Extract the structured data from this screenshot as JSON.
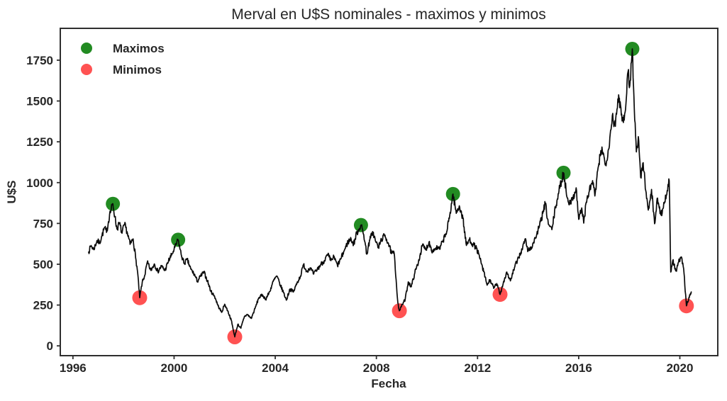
{
  "figure": {
    "background": "#ffffff",
    "text_color": "#262626",
    "spine_color": "#2e2e2e"
  },
  "chart_data": {
    "type": "line",
    "title": "Merval en U$S nominales - maximos y minimos",
    "xlabel": "Fecha",
    "ylabel": "U$S",
    "xlim": [
      1995.5,
      2021.5
    ],
    "ylim": [
      -60,
      1945
    ],
    "xticks": [
      1996,
      2000,
      2004,
      2008,
      2012,
      2016,
      2020
    ],
    "yticks": [
      0,
      250,
      500,
      750,
      1000,
      1250,
      1500,
      1750
    ],
    "grid": false,
    "line_color": "#0a0a0a",
    "line_width": 1.7,
    "legend": {
      "position": "upper-left",
      "entries": [
        {
          "label": "Maximos",
          "color": "#228B22"
        },
        {
          "label": "Minimos",
          "color": "#FF5252"
        }
      ]
    },
    "series": {
      "name": "Merval U$S",
      "points": [
        [
          1996.62,
          575
        ],
        [
          1996.72,
          615
        ],
        [
          1996.82,
          590
        ],
        [
          1996.95,
          645
        ],
        [
          1997.05,
          630
        ],
        [
          1997.15,
          675
        ],
        [
          1997.25,
          725
        ],
        [
          1997.33,
          695
        ],
        [
          1997.45,
          805
        ],
        [
          1997.58,
          870
        ],
        [
          1997.66,
          790
        ],
        [
          1997.74,
          715
        ],
        [
          1997.84,
          752
        ],
        [
          1997.94,
          690
        ],
        [
          1998.04,
          745
        ],
        [
          1998.14,
          700
        ],
        [
          1998.26,
          622
        ],
        [
          1998.38,
          655
        ],
        [
          1998.48,
          540
        ],
        [
          1998.56,
          448
        ],
        [
          1998.64,
          295
        ],
        [
          1998.74,
          388
        ],
        [
          1998.84,
          432
        ],
        [
          1998.94,
          512
        ],
        [
          1999.08,
          462
        ],
        [
          1999.22,
          502
        ],
        [
          1999.36,
          455
        ],
        [
          1999.5,
          488
        ],
        [
          1999.64,
          462
        ],
        [
          1999.78,
          520
        ],
        [
          1999.9,
          556
        ],
        [
          2000.0,
          590
        ],
        [
          2000.16,
          650
        ],
        [
          2000.28,
          560
        ],
        [
          2000.4,
          505
        ],
        [
          2000.52,
          528
        ],
        [
          2000.66,
          470
        ],
        [
          2000.8,
          438
        ],
        [
          2000.92,
          396
        ],
        [
          2001.04,
          425
        ],
        [
          2001.18,
          452
        ],
        [
          2001.32,
          398
        ],
        [
          2001.46,
          332
        ],
        [
          2001.6,
          305
        ],
        [
          2001.74,
          245
        ],
        [
          2001.88,
          205
        ],
        [
          2002.0,
          255
        ],
        [
          2002.12,
          215
        ],
        [
          2002.26,
          158
        ],
        [
          2002.4,
          55
        ],
        [
          2002.52,
          132
        ],
        [
          2002.64,
          108
        ],
        [
          2002.78,
          180
        ],
        [
          2002.9,
          192
        ],
        [
          2003.05,
          168
        ],
        [
          2003.2,
          228
        ],
        [
          2003.35,
          295
        ],
        [
          2003.5,
          312
        ],
        [
          2003.62,
          285
        ],
        [
          2003.78,
          332
        ],
        [
          2003.92,
          395
        ],
        [
          2004.06,
          428
        ],
        [
          2004.2,
          372
        ],
        [
          2004.32,
          330
        ],
        [
          2004.44,
          280
        ],
        [
          2004.58,
          348
        ],
        [
          2004.72,
          330
        ],
        [
          2004.86,
          385
        ],
        [
          2005.0,
          428
        ],
        [
          2005.12,
          498
        ],
        [
          2005.24,
          458
        ],
        [
          2005.38,
          478
        ],
        [
          2005.52,
          440
        ],
        [
          2005.66,
          468
        ],
        [
          2005.8,
          498
        ],
        [
          2005.94,
          522
        ],
        [
          2006.08,
          558
        ],
        [
          2006.2,
          522
        ],
        [
          2006.32,
          545
        ],
        [
          2006.46,
          492
        ],
        [
          2006.6,
          535
        ],
        [
          2006.74,
          588
        ],
        [
          2006.88,
          638
        ],
        [
          2007.0,
          655
        ],
        [
          2007.1,
          622
        ],
        [
          2007.22,
          690
        ],
        [
          2007.39,
          740
        ],
        [
          2007.5,
          682
        ],
        [
          2007.62,
          562
        ],
        [
          2007.74,
          648
        ],
        [
          2007.85,
          700
        ],
        [
          2007.96,
          645
        ],
        [
          2008.08,
          602
        ],
        [
          2008.2,
          652
        ],
        [
          2008.34,
          678
        ],
        [
          2008.48,
          625
        ],
        [
          2008.6,
          565
        ],
        [
          2008.7,
          572
        ],
        [
          2008.78,
          405
        ],
        [
          2008.85,
          262
        ],
        [
          2008.91,
          215
        ],
        [
          2009.02,
          252
        ],
        [
          2009.14,
          285
        ],
        [
          2009.26,
          392
        ],
        [
          2009.38,
          362
        ],
        [
          2009.52,
          448
        ],
        [
          2009.66,
          512
        ],
        [
          2009.82,
          618
        ],
        [
          2009.95,
          588
        ],
        [
          2010.08,
          635
        ],
        [
          2010.22,
          578
        ],
        [
          2010.36,
          602
        ],
        [
          2010.5,
          592
        ],
        [
          2010.64,
          648
        ],
        [
          2010.78,
          698
        ],
        [
          2010.9,
          798
        ],
        [
          2011.03,
          930
        ],
        [
          2011.16,
          812
        ],
        [
          2011.28,
          858
        ],
        [
          2011.42,
          782
        ],
        [
          2011.56,
          615
        ],
        [
          2011.68,
          652
        ],
        [
          2011.82,
          622
        ],
        [
          2011.96,
          598
        ],
        [
          2012.1,
          532
        ],
        [
          2012.24,
          455
        ],
        [
          2012.38,
          372
        ],
        [
          2012.5,
          405
        ],
        [
          2012.64,
          352
        ],
        [
          2012.76,
          382
        ],
        [
          2012.89,
          315
        ],
        [
          2013.02,
          388
        ],
        [
          2013.16,
          452
        ],
        [
          2013.3,
          398
        ],
        [
          2013.46,
          478
        ],
        [
          2013.62,
          542
        ],
        [
          2013.76,
          588
        ],
        [
          2013.88,
          655
        ],
        [
          2014.0,
          582
        ],
        [
          2014.14,
          605
        ],
        [
          2014.28,
          658
        ],
        [
          2014.44,
          728
        ],
        [
          2014.58,
          812
        ],
        [
          2014.68,
          872
        ],
        [
          2014.8,
          745
        ],
        [
          2014.94,
          712
        ],
        [
          2015.08,
          845
        ],
        [
          2015.22,
          948
        ],
        [
          2015.4,
          1060
        ],
        [
          2015.55,
          905
        ],
        [
          2015.68,
          870
        ],
        [
          2015.78,
          912
        ],
        [
          2015.9,
          968
        ],
        [
          2016.0,
          775
        ],
        [
          2016.12,
          845
        ],
        [
          2016.2,
          752
        ],
        [
          2016.3,
          880
        ],
        [
          2016.42,
          948
        ],
        [
          2016.55,
          1012
        ],
        [
          2016.64,
          918
        ],
        [
          2016.8,
          1118
        ],
        [
          2016.92,
          1218
        ],
        [
          2017.05,
          1108
        ],
        [
          2017.18,
          1205
        ],
        [
          2017.33,
          1410
        ],
        [
          2017.45,
          1345
        ],
        [
          2017.58,
          1538
        ],
        [
          2017.7,
          1420
        ],
        [
          2017.8,
          1382
        ],
        [
          2017.95,
          1678
        ],
        [
          2018.02,
          1592
        ],
        [
          2018.12,
          1819
        ],
        [
          2018.2,
          1452
        ],
        [
          2018.28,
          1188
        ],
        [
          2018.36,
          1282
        ],
        [
          2018.45,
          1032
        ],
        [
          2018.55,
          1122
        ],
        [
          2018.65,
          952
        ],
        [
          2018.75,
          832
        ],
        [
          2018.88,
          958
        ],
        [
          2019.0,
          748
        ],
        [
          2019.12,
          905
        ],
        [
          2019.25,
          802
        ],
        [
          2019.4,
          882
        ],
        [
          2019.5,
          952
        ],
        [
          2019.58,
          1012
        ],
        [
          2019.64,
          452
        ],
        [
          2019.72,
          522
        ],
        [
          2019.85,
          458
        ],
        [
          2019.95,
          512
        ],
        [
          2020.05,
          545
        ],
        [
          2020.15,
          472
        ],
        [
          2020.26,
          245
        ],
        [
          2020.36,
          298
        ],
        [
          2020.45,
          330
        ]
      ]
    },
    "maxima": {
      "label": "Maximos",
      "color": "#228B22",
      "points": [
        [
          1997.58,
          870
        ],
        [
          2000.16,
          650
        ],
        [
          2007.39,
          740
        ],
        [
          2011.03,
          930
        ],
        [
          2015.4,
          1060
        ],
        [
          2018.12,
          1819
        ]
      ]
    },
    "minima": {
      "label": "Minimos",
      "color": "#FF5252",
      "points": [
        [
          1998.64,
          295
        ],
        [
          2002.4,
          55
        ],
        [
          2008.91,
          215
        ],
        [
          2012.89,
          315
        ],
        [
          2020.26,
          245
        ]
      ]
    },
    "style": {
      "noise_amplitude": 0.025,
      "noise_base": 2,
      "noise_seed": 7,
      "interp_step_years": 0.016
    }
  }
}
